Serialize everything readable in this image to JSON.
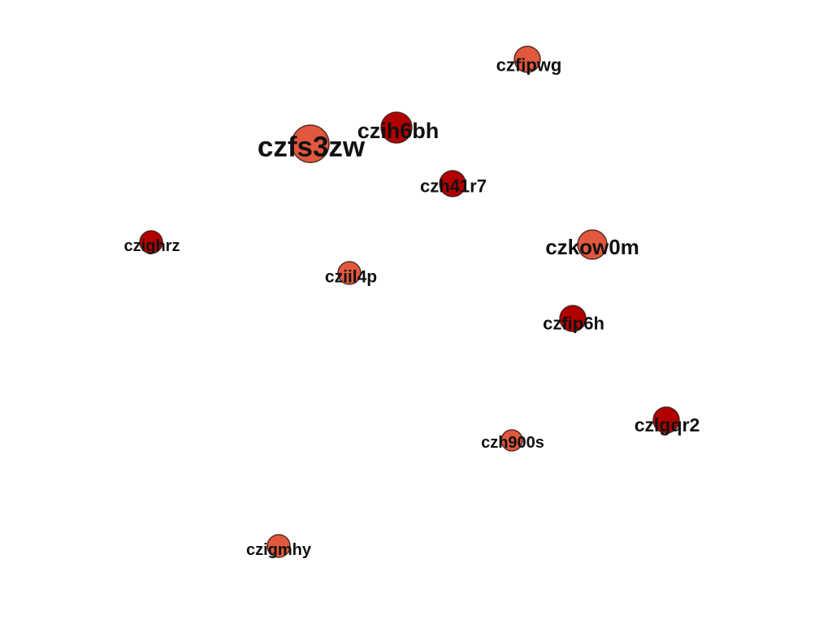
{
  "graph": {
    "colors": {
      "light": "#e2583e",
      "dark": "#b20000",
      "label": "#111111"
    },
    "nodes": [
      {
        "id": "czfipwg",
        "label": "czfipwg",
        "tone": "light"
      },
      {
        "id": "czih6bh",
        "label": "czih6bh",
        "tone": "dark"
      },
      {
        "id": "czfs3zw",
        "label": "czfs3zw",
        "tone": "light"
      },
      {
        "id": "czh41r7",
        "label": "czh41r7",
        "tone": "dark"
      },
      {
        "id": "czighrz",
        "label": "czighrz",
        "tone": "dark"
      },
      {
        "id": "czkow0m",
        "label": "czkow0m",
        "tone": "light"
      },
      {
        "id": "cziil4p",
        "label": "cziil4p",
        "tone": "light"
      },
      {
        "id": "czfip6h",
        "label": "czfip6h",
        "tone": "dark"
      },
      {
        "id": "czlgqr2",
        "label": "czlgqr2",
        "tone": "dark"
      },
      {
        "id": "czh900s",
        "label": "czh900s",
        "tone": "light"
      },
      {
        "id": "czigmhy",
        "label": "czigmhy",
        "tone": "light"
      }
    ]
  }
}
